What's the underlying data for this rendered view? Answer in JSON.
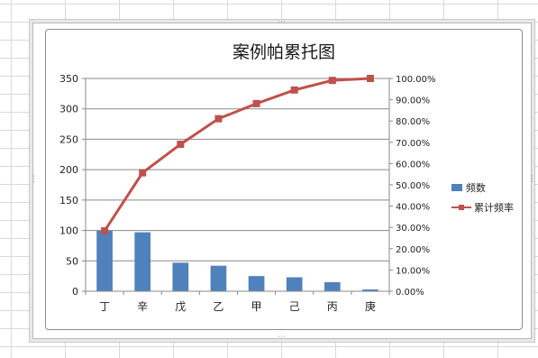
{
  "chart_data": {
    "type": "bar",
    "title": "案例帕累托图",
    "categories": [
      "丁",
      "辛",
      "戊",
      "乙",
      "甲",
      "己",
      "丙",
      "庚"
    ],
    "series": [
      {
        "name": "频数",
        "type": "bar",
        "axis": "left",
        "color": "#4f81bd",
        "values": [
          100,
          97,
          47,
          42,
          25,
          23,
          15,
          3
        ]
      },
      {
        "name": "累计频率",
        "type": "line",
        "axis": "right",
        "color": "#c0504d",
        "values": [
          0.2838,
          0.5568,
          0.6908,
          0.8108,
          0.8818,
          0.9458,
          0.9908,
          1.0
        ]
      }
    ],
    "ylim": [
      0,
      350
    ],
    "yticks": [
      "0",
      "50",
      "100",
      "150",
      "200",
      "250",
      "300",
      "350"
    ],
    "y2lim": [
      0,
      1
    ],
    "y2ticks": [
      "0.00%",
      "10.00%",
      "20.00%",
      "30.00%",
      "40.00%",
      "50.00%",
      "60.00%",
      "70.00%",
      "80.00%",
      "90.00%",
      "100.00%"
    ],
    "grid": true,
    "legend": "right"
  }
}
